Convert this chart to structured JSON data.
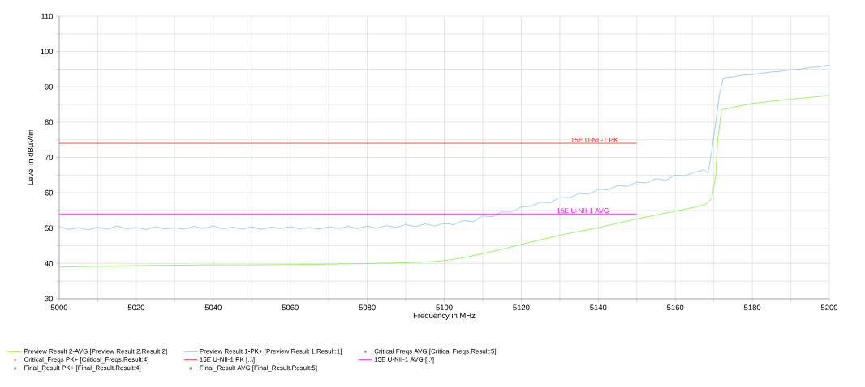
{
  "chart_data": {
    "type": "line",
    "xlabel": "Frequency in MHz",
    "ylabel": "Level in dBµV/m",
    "xlim": [
      5000,
      5200
    ],
    "ylim": [
      30,
      110
    ],
    "xticks": [
      5000,
      {
        "value": 5010,
        "label": null
      },
      5020,
      {
        "value": 5030,
        "label": null
      },
      5040,
      {
        "value": 5050,
        "label": null
      },
      5060,
      {
        "value": 5070,
        "label": null
      },
      5080,
      {
        "value": 5090,
        "label": null
      },
      5100,
      {
        "value": 5110,
        "label": null
      },
      5120,
      {
        "value": 5130,
        "label": null
      },
      5140,
      {
        "value": 5150,
        "label": null
      },
      5160,
      {
        "value": 5170,
        "label": null
      },
      5180,
      {
        "value": 5190,
        "label": null
      },
      5200
    ],
    "yticks": [
      30,
      {
        "value": 35,
        "label": null
      },
      40,
      {
        "value": 45,
        "label": null
      },
      50,
      {
        "value": 55,
        "label": null
      },
      60,
      {
        "value": 65,
        "label": null
      },
      70,
      {
        "value": 75,
        "label": null
      },
      80,
      {
        "value": 85,
        "label": null
      },
      90,
      {
        "value": 95,
        "label": null
      },
      100,
      {
        "value": 105,
        "label": null
      },
      110
    ],
    "grid": true,
    "legend": "bottom",
    "series": [
      {
        "name": "Preview Result 2-AVG   [Preview Result 2.Result:2]",
        "marker": "none",
        "color": "#86ec4c",
        "x": [
          5000,
          5010,
          5020,
          5030,
          5040,
          5050,
          5060,
          5070,
          5080,
          5090,
          5095,
          5100,
          5105,
          5110,
          5115,
          5120,
          5125,
          5130,
          5135,
          5140,
          5145,
          5150,
          5155,
          5160,
          5165,
          5168,
          5169.5,
          5170.5,
          5171,
          5172,
          5175,
          5180,
          5185,
          5190,
          5195,
          5200
        ],
        "values": [
          39.0,
          39.2,
          39.4,
          39.5,
          39.6,
          39.6,
          39.7,
          39.8,
          40.0,
          40.2,
          40.4,
          40.8,
          41.6,
          42.8,
          44.0,
          45.4,
          46.7,
          48.0,
          49.1,
          50.1,
          51.4,
          52.6,
          53.7,
          54.8,
          55.9,
          56.8,
          58.5,
          65,
          75,
          83.5,
          84.2,
          85.3,
          85.9,
          86.5,
          87.0,
          87.6
        ]
      },
      {
        "name": "Preview Result 1-PK+   [Preview Result 1.Result:1]",
        "marker": "none",
        "color": "#8ec0f0",
        "x": [
          5000,
          5002.5,
          5005,
          5007.5,
          5010,
          5012.5,
          5015,
          5017.5,
          5020,
          5022.5,
          5025,
          5027.5,
          5030,
          5032.5,
          5035,
          5037.5,
          5040,
          5042.5,
          5045,
          5047.5,
          5050,
          5052.5,
          5055,
          5057.5,
          5060,
          5062.5,
          5065,
          5067.5,
          5070,
          5072.5,
          5075,
          5077.5,
          5080,
          5082.5,
          5085,
          5087.5,
          5090,
          5092.5,
          5095,
          5097.5,
          5100,
          5102.5,
          5105,
          5107.5,
          5110,
          5112.5,
          5115,
          5117.5,
          5120,
          5122.5,
          5125,
          5127.5,
          5130,
          5132.5,
          5135,
          5137.5,
          5140,
          5142.5,
          5145,
          5147.5,
          5150,
          5152.5,
          5155,
          5157.5,
          5160,
          5162.5,
          5165,
          5167.5,
          5168.5,
          5169.5,
          5170.5,
          5171.5,
          5172.5,
          5175,
          5177.5,
          5180,
          5182.5,
          5185,
          5187.5,
          5190,
          5192.5,
          5195,
          5197.5,
          5200
        ],
        "values": [
          50.5,
          49.6,
          50.2,
          49.5,
          50.3,
          49.7,
          50.6,
          49.8,
          50.2,
          49.6,
          50.4,
          49.8,
          50.1,
          49.7,
          50.5,
          49.9,
          50.6,
          49.8,
          50.3,
          49.7,
          50.4,
          49.6,
          50.3,
          49.9,
          50.4,
          49.8,
          50.2,
          49.7,
          50.4,
          49.9,
          50.5,
          49.9,
          50.6,
          50.0,
          50.7,
          50.2,
          51.0,
          50.4,
          51.2,
          50.6,
          51.3,
          51.0,
          52.2,
          51.8,
          53.5,
          53.2,
          54.6,
          54.5,
          56.0,
          56.2,
          57.3,
          57.2,
          58.6,
          58.6,
          59.8,
          59.6,
          61.0,
          60.8,
          62.0,
          61.8,
          63.0,
          62.8,
          64.0,
          63.5,
          65.0,
          64.8,
          65.8,
          66.5,
          65.5,
          72,
          80,
          88,
          92.5,
          92.8,
          93.3,
          93.5,
          93.9,
          94.2,
          94.4,
          94.8,
          95.0,
          95.5,
          95.7,
          96.2
        ]
      },
      {
        "name": "Critical  Freqs AVG   [Critical  Freqs.Result:5]",
        "type": "scatter",
        "marker": "star",
        "color": "#2020c0"
      },
      {
        "name": "Critical_Freqs PK+   [Critical_Freqs.Result:4]",
        "type": "scatter",
        "marker": "star",
        "color": "#ff2020"
      },
      {
        "name": "15E U-NII-1 PK   [..\\]",
        "marker": "none",
        "color": "#ff2020",
        "x": [
          5000,
          5150
        ],
        "values": [
          74,
          74
        ]
      },
      {
        "name": "15E U-NII-1 AVG   [..\\]",
        "marker": "none",
        "color": "#ff00ff",
        "x": [
          5000,
          5150
        ],
        "values": [
          54,
          54
        ]
      },
      {
        "name": "Final_Result PK+   [Final_Result.Result:4]",
        "type": "scatter",
        "marker": "diamond",
        "color": "#3f8fd8"
      },
      {
        "name": "Final_Result AVG   [Final_Result.Result:5]",
        "type": "scatter",
        "marker": "diamond",
        "color": "#4cb84c"
      }
    ],
    "annotations": [
      {
        "text": "15E U-NII-1 PK",
        "x": 5139,
        "y": 74
      },
      {
        "text": "15E U-NII-1 AVG",
        "x": 5136,
        "y": 54
      }
    ]
  }
}
